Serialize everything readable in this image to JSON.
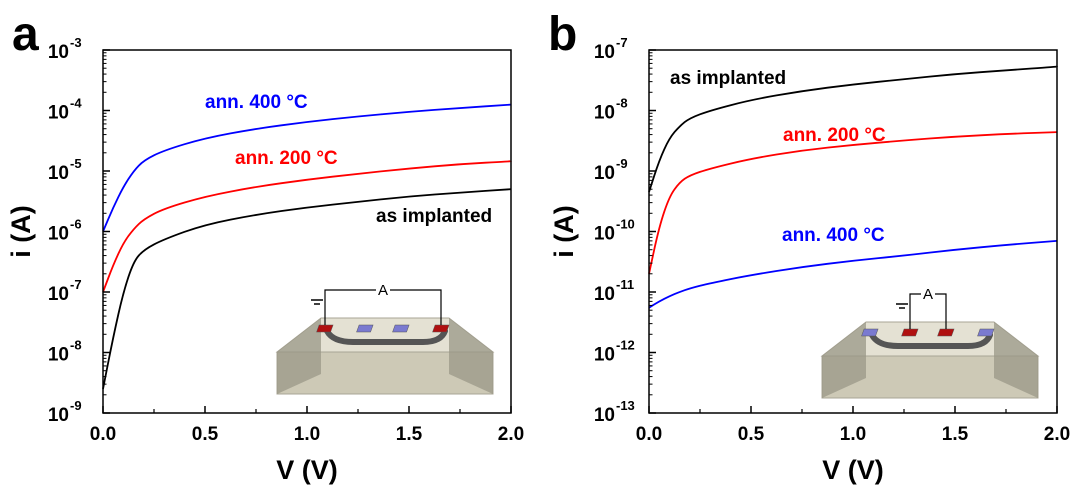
{
  "chart_data": [
    {
      "type": "line",
      "panel_label": "a",
      "xlabel": "V (V)",
      "ylabel": "i (A)",
      "xlim": [
        0.0,
        2.0
      ],
      "ylim": [
        1e-09,
        0.001
      ],
      "yscale": "log",
      "xticks": [
        "0.0",
        "0.5",
        "1.0",
        "1.5",
        "2.0"
      ],
      "yticks": [
        {
          "base": "10",
          "exp": "-9"
        },
        {
          "base": "10",
          "exp": "-8"
        },
        {
          "base": "10",
          "exp": "-7"
        },
        {
          "base": "10",
          "exp": "-6"
        },
        {
          "base": "10",
          "exp": "-5"
        },
        {
          "base": "10",
          "exp": "-4"
        },
        {
          "base": "10",
          "exp": "-3"
        }
      ],
      "series": [
        {
          "name": "ann. 400 °C",
          "color": "#0000ff",
          "x": [
            0,
            0.05,
            0.1,
            0.15,
            0.2,
            0.3,
            0.5,
            0.75,
            1.0,
            1.25,
            1.5,
            1.75,
            2.0
          ],
          "y": [
            1e-06,
            2.5e-06,
            5.5e-06,
            1e-05,
            1.5e-05,
            2.2e-05,
            3.5e-05,
            5e-05,
            6.5e-05,
            8e-05,
            9.5e-05,
            0.00011,
            0.000125
          ]
        },
        {
          "name": "ann. 200 °C",
          "color": "#ff0000",
          "x": [
            0,
            0.05,
            0.1,
            0.15,
            0.2,
            0.3,
            0.5,
            0.75,
            1.0,
            1.25,
            1.5,
            1.75,
            2.0
          ],
          "y": [
            1e-07,
            2.8e-07,
            6.5e-07,
            1.1e-06,
            1.6e-06,
            2.4e-06,
            3.8e-06,
            5.5e-06,
            7.2e-06,
            9e-06,
            1.1e-05,
            1.3e-05,
            1.45e-05
          ]
        },
        {
          "name": "as implanted",
          "color": "#000000",
          "x": [
            0,
            0.05,
            0.1,
            0.15,
            0.2,
            0.3,
            0.5,
            0.75,
            1.0,
            1.25,
            1.5,
            1.75,
            2.0
          ],
          "y": [
            2.5e-09,
            1.8e-08,
            1e-07,
            3.2e-07,
            5e-07,
            7.5e-07,
            1.3e-06,
            1.9e-06,
            2.5e-06,
            3.1e-06,
            3.8e-06,
            4.4e-06,
            5e-06
          ]
        }
      ],
      "inset": {
        "ammeter_label": "A",
        "electrodes": [
          "red",
          "blue",
          "blue",
          "red"
        ],
        "probed": "outer"
      }
    },
    {
      "type": "line",
      "panel_label": "b",
      "xlabel": "V (V)",
      "ylabel": "i (A)",
      "xlim": [
        0.0,
        2.0
      ],
      "ylim": [
        1e-13,
        1e-07
      ],
      "yscale": "log",
      "xticks": [
        "0.0",
        "0.5",
        "1.0",
        "1.5",
        "2.0"
      ],
      "yticks": [
        {
          "base": "10",
          "exp": "-13"
        },
        {
          "base": "10",
          "exp": "-12"
        },
        {
          "base": "10",
          "exp": "-11"
        },
        {
          "base": "10",
          "exp": "-10"
        },
        {
          "base": "10",
          "exp": "-9"
        },
        {
          "base": "10",
          "exp": "-8"
        },
        {
          "base": "10",
          "exp": "-7"
        }
      ],
      "series": [
        {
          "name": "as implanted",
          "color": "#000000",
          "x": [
            0,
            0.05,
            0.1,
            0.15,
            0.2,
            0.3,
            0.5,
            0.75,
            1.0,
            1.25,
            1.5,
            1.75,
            2.0
          ],
          "y": [
            4.5e-10,
            1.5e-09,
            3.5e-09,
            5.5e-09,
            7.5e-09,
            1e-08,
            1.5e-08,
            2.1e-08,
            2.7e-08,
            3.3e-08,
            4e-08,
            4.6e-08,
            5.3e-08
          ]
        },
        {
          "name": "ann. 200 °C",
          "color": "#ff0000",
          "x": [
            0,
            0.05,
            0.1,
            0.15,
            0.2,
            0.3,
            0.5,
            0.75,
            1.0,
            1.25,
            1.5,
            1.75,
            2.0
          ],
          "y": [
            2e-11,
            1.2e-10,
            3.8e-10,
            6.5e-10,
            8.5e-10,
            1.1e-09,
            1.6e-09,
            2.2e-09,
            2.7e-09,
            3.2e-09,
            3.7e-09,
            4.1e-09,
            4.4e-09
          ]
        },
        {
          "name": "ann. 400 °C",
          "color": "#0000ff",
          "x": [
            0,
            0.05,
            0.1,
            0.15,
            0.2,
            0.3,
            0.5,
            0.75,
            1.0,
            1.25,
            1.5,
            1.75,
            2.0
          ],
          "y": [
            5.5e-12,
            7e-12,
            8.5e-12,
            1e-11,
            1.15e-11,
            1.4e-11,
            1.9e-11,
            2.6e-11,
            3.3e-11,
            4e-11,
            5e-11,
            6e-11,
            7e-11
          ]
        }
      ],
      "inset": {
        "ammeter_label": "A",
        "electrodes": [
          "blue",
          "red",
          "red",
          "blue"
        ],
        "probed": "inner"
      }
    }
  ]
}
